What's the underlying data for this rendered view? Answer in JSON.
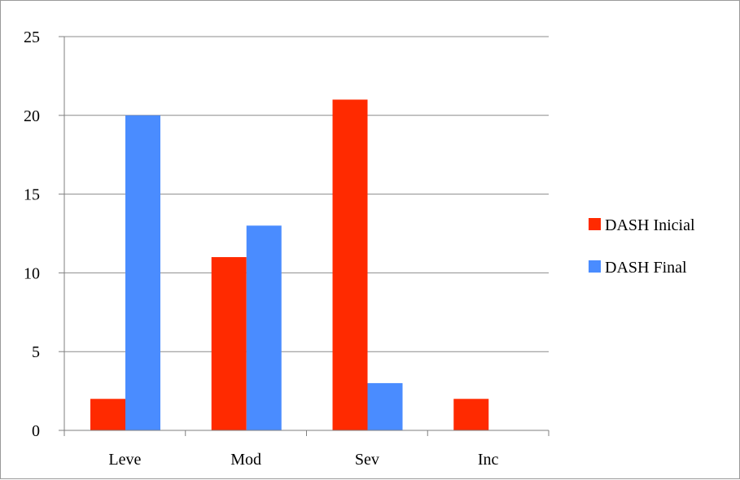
{
  "chart_data": {
    "type": "bar",
    "title": "",
    "xlabel": "",
    "ylabel": "",
    "categories": [
      "Leve",
      "Mod",
      "Sev",
      "Inc"
    ],
    "series": [
      {
        "name": "DASH Inicial",
        "color": "#ff2a00",
        "values": [
          2,
          11,
          21,
          2
        ]
      },
      {
        "name": "DASH Final",
        "color": "#4a8cff",
        "values": [
          20,
          13,
          3,
          0
        ]
      }
    ],
    "ylim": [
      0,
      25
    ],
    "yticks": [
      0,
      5,
      10,
      15,
      20,
      25
    ],
    "grid": true,
    "legend_position": "right"
  }
}
